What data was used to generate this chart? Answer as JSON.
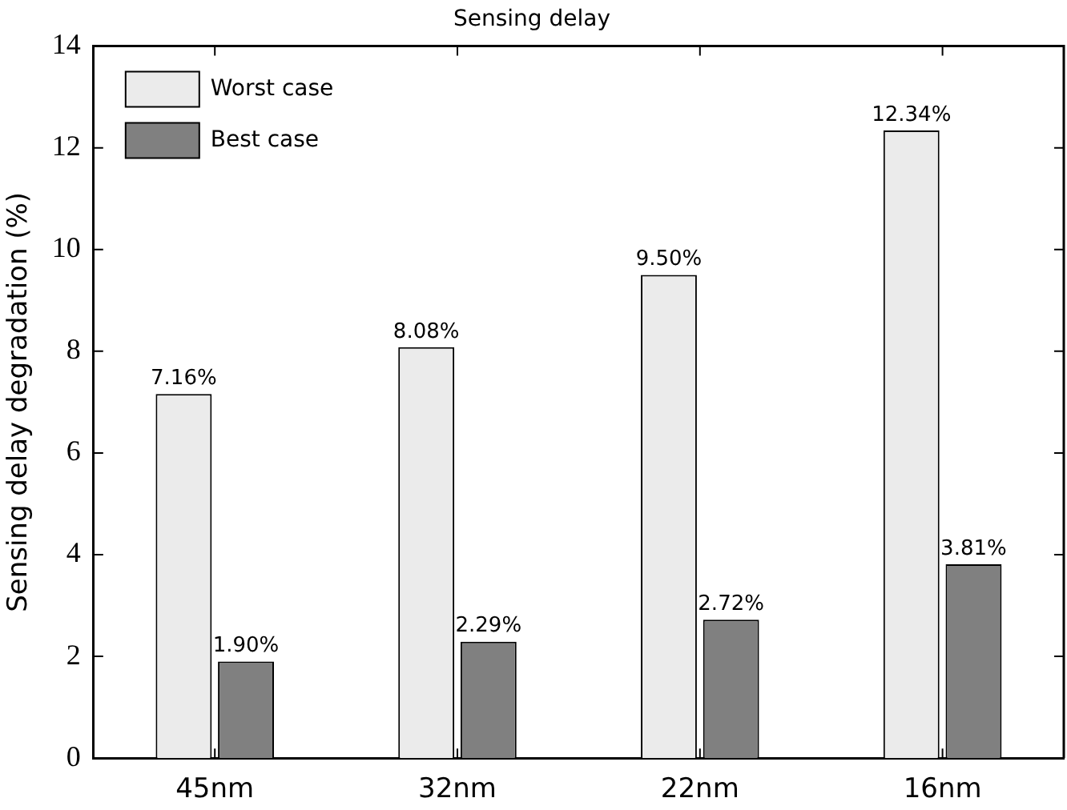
{
  "chart_data": {
    "type": "bar",
    "title": "Sensing delay",
    "ylabel": "Sensing delay degradation (%)",
    "categories": [
      "45nm",
      "32nm",
      "22nm",
      "16nm"
    ],
    "series": [
      {
        "name": "Worst case",
        "color": "#ebebeb",
        "values": [
          7.16,
          8.08,
          9.5,
          12.34
        ],
        "value_labels": [
          "7.16%",
          "8.08%",
          "9.50%",
          "12.34%"
        ]
      },
      {
        "name": "Best case",
        "color": "#808080",
        "values": [
          1.9,
          2.29,
          2.72,
          3.81
        ],
        "value_labels": [
          "1.90%",
          "2.29%",
          "2.72%",
          "3.81%"
        ]
      }
    ],
    "ylim": [
      0,
      14
    ],
    "yticks": [
      0,
      2,
      4,
      6,
      8,
      10,
      12,
      14
    ],
    "legend": "top left"
  }
}
